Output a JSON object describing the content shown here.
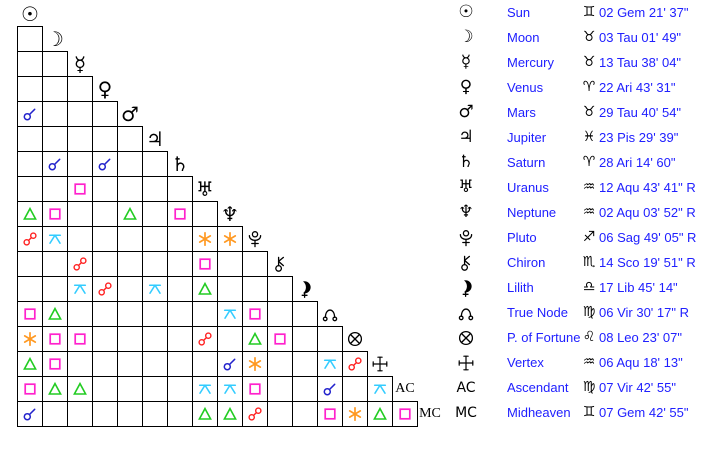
{
  "colors": {
    "background": "#ffffff",
    "grid_line": "#000000",
    "glyph_black": "#000000",
    "text_blue": "#2020ff",
    "aspects": {
      "conjunction": "#2222cc",
      "sextile": "#ff9922",
      "square": "#ff22cc",
      "trine": "#22cc22",
      "quincunx": "#33ccff",
      "opposition": "#ff2020"
    }
  },
  "glyph_chars": {
    "sun": "☉",
    "moon": "☽",
    "mercury": "☿",
    "venus": "♀",
    "mars": "♂",
    "jupiter": "♃",
    "saturn": "♄",
    "uranus": "♅",
    "neptune": "♆",
    "ascendant": "AC",
    "midheaven": "MC"
  },
  "sign_chars": {
    "aries": "♈",
    "taurus": "♉",
    "gemini": "♊",
    "leo": "♌",
    "virgo": "♍",
    "libra": "♎",
    "scorpio": "♏",
    "sagittarius": "♐",
    "aquarius": "♒",
    "pisces": "♓"
  },
  "grid": {
    "order": [
      "sun",
      "moon",
      "mercury",
      "venus",
      "mars",
      "jupiter",
      "saturn",
      "uranus",
      "neptune",
      "pluto",
      "chiron",
      "lilith",
      "truenode",
      "fortune",
      "vertex",
      "ascendant",
      "midheaven"
    ],
    "aspects": [
      {
        "row": "mars",
        "col": "sun",
        "type": "conjunction"
      },
      {
        "row": "saturn",
        "col": "moon",
        "type": "conjunction"
      },
      {
        "row": "saturn",
        "col": "venus",
        "type": "conjunction"
      },
      {
        "row": "uranus",
        "col": "mercury",
        "type": "square"
      },
      {
        "row": "neptune",
        "col": "sun",
        "type": "trine"
      },
      {
        "row": "neptune",
        "col": "moon",
        "type": "square"
      },
      {
        "row": "neptune",
        "col": "mars",
        "type": "trine"
      },
      {
        "row": "neptune",
        "col": "saturn",
        "type": "square"
      },
      {
        "row": "pluto",
        "col": "sun",
        "type": "opposition"
      },
      {
        "row": "pluto",
        "col": "moon",
        "type": "quincunx"
      },
      {
        "row": "pluto",
        "col": "uranus",
        "type": "sextile"
      },
      {
        "row": "pluto",
        "col": "neptune",
        "type": "sextile"
      },
      {
        "row": "chiron",
        "col": "mercury",
        "type": "opposition"
      },
      {
        "row": "chiron",
        "col": "uranus",
        "type": "square"
      },
      {
        "row": "lilith",
        "col": "mercury",
        "type": "quincunx"
      },
      {
        "row": "lilith",
        "col": "venus",
        "type": "opposition"
      },
      {
        "row": "lilith",
        "col": "jupiter",
        "type": "quincunx"
      },
      {
        "row": "lilith",
        "col": "uranus",
        "type": "trine"
      },
      {
        "row": "truenode",
        "col": "sun",
        "type": "square"
      },
      {
        "row": "truenode",
        "col": "moon",
        "type": "trine"
      },
      {
        "row": "truenode",
        "col": "neptune",
        "type": "quincunx"
      },
      {
        "row": "truenode",
        "col": "pluto",
        "type": "square"
      },
      {
        "row": "fortune",
        "col": "sun",
        "type": "sextile"
      },
      {
        "row": "fortune",
        "col": "moon",
        "type": "square"
      },
      {
        "row": "fortune",
        "col": "mercury",
        "type": "square"
      },
      {
        "row": "fortune",
        "col": "uranus",
        "type": "opposition"
      },
      {
        "row": "fortune",
        "col": "pluto",
        "type": "trine"
      },
      {
        "row": "fortune",
        "col": "chiron",
        "type": "square"
      },
      {
        "row": "vertex",
        "col": "sun",
        "type": "trine"
      },
      {
        "row": "vertex",
        "col": "moon",
        "type": "square"
      },
      {
        "row": "vertex",
        "col": "neptune",
        "type": "conjunction"
      },
      {
        "row": "vertex",
        "col": "pluto",
        "type": "sextile"
      },
      {
        "row": "vertex",
        "col": "truenode",
        "type": "quincunx"
      },
      {
        "row": "vertex",
        "col": "fortune",
        "type": "opposition"
      },
      {
        "row": "ascendant",
        "col": "sun",
        "type": "square"
      },
      {
        "row": "ascendant",
        "col": "moon",
        "type": "trine"
      },
      {
        "row": "ascendant",
        "col": "mercury",
        "type": "trine"
      },
      {
        "row": "ascendant",
        "col": "uranus",
        "type": "quincunx"
      },
      {
        "row": "ascendant",
        "col": "neptune",
        "type": "quincunx"
      },
      {
        "row": "ascendant",
        "col": "pluto",
        "type": "square"
      },
      {
        "row": "ascendant",
        "col": "truenode",
        "type": "conjunction"
      },
      {
        "row": "ascendant",
        "col": "vertex",
        "type": "quincunx"
      },
      {
        "row": "midheaven",
        "col": "sun",
        "type": "conjunction"
      },
      {
        "row": "midheaven",
        "col": "uranus",
        "type": "trine"
      },
      {
        "row": "midheaven",
        "col": "neptune",
        "type": "trine"
      },
      {
        "row": "midheaven",
        "col": "pluto",
        "type": "opposition"
      },
      {
        "row": "midheaven",
        "col": "truenode",
        "type": "square"
      },
      {
        "row": "midheaven",
        "col": "fortune",
        "type": "sextile"
      },
      {
        "row": "midheaven",
        "col": "vertex",
        "type": "trine"
      },
      {
        "row": "midheaven",
        "col": "ascendant",
        "type": "square"
      }
    ]
  },
  "table": {
    "rows": [
      {
        "id": "sun",
        "name": "Sun",
        "sign": "gemini",
        "position": "02 Gem 21' 37\""
      },
      {
        "id": "moon",
        "name": "Moon",
        "sign": "taurus",
        "position": "03 Tau 01' 49\""
      },
      {
        "id": "mercury",
        "name": "Mercury",
        "sign": "taurus",
        "position": "13 Tau 38' 04\""
      },
      {
        "id": "venus",
        "name": "Venus",
        "sign": "aries",
        "position": "22 Ari 43' 31\""
      },
      {
        "id": "mars",
        "name": "Mars",
        "sign": "taurus",
        "position": "29 Tau 40' 54\""
      },
      {
        "id": "jupiter",
        "name": "Jupiter",
        "sign": "pisces",
        "position": "23 Pis 29' 39\""
      },
      {
        "id": "saturn",
        "name": "Saturn",
        "sign": "aries",
        "position": "28 Ari 14' 60\""
      },
      {
        "id": "uranus",
        "name": "Uranus",
        "sign": "aquarius",
        "position": "12 Aqu 43' 41\" R"
      },
      {
        "id": "neptune",
        "name": "Neptune",
        "sign": "aquarius",
        "position": "02 Aqu 03' 52\" R"
      },
      {
        "id": "pluto",
        "name": "Pluto",
        "sign": "sagittarius",
        "position": "06 Sag 49' 05\" R"
      },
      {
        "id": "chiron",
        "name": "Chiron",
        "sign": "scorpio",
        "position": "14 Sco 19' 51\" R"
      },
      {
        "id": "lilith",
        "name": "Lilith",
        "sign": "libra",
        "position": "17 Lib 45' 14\""
      },
      {
        "id": "truenode",
        "name": "True Node",
        "sign": "virgo",
        "position": "06 Vir 30' 17\" R"
      },
      {
        "id": "fortune",
        "name": "P. of Fortune",
        "sign": "leo",
        "position": "08 Leo 23' 07\""
      },
      {
        "id": "vertex",
        "name": "Vertex",
        "sign": "aquarius",
        "position": "06 Aqu 18' 13\""
      },
      {
        "id": "ascendant",
        "name": "Ascendant",
        "sign": "virgo",
        "position": "07 Vir 42' 55\""
      },
      {
        "id": "midheaven",
        "name": "Midheaven",
        "sign": "gemini",
        "position": "07 Gem 42' 55\""
      }
    ]
  }
}
